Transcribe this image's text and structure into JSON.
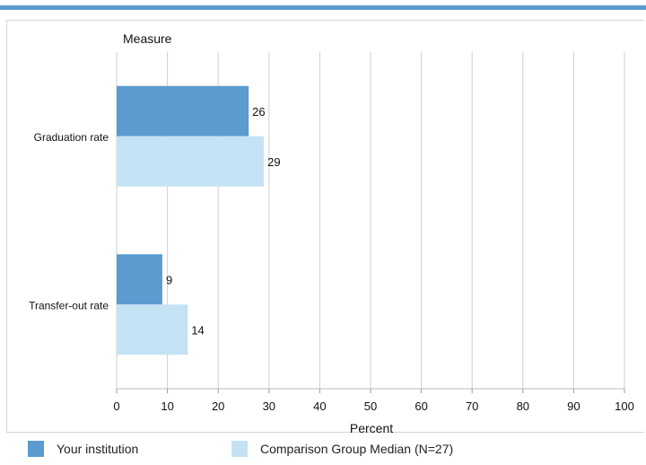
{
  "chart_data": {
    "type": "bar",
    "orientation": "horizontal",
    "ylabel": "Measure",
    "xlabel": "Percent",
    "categories": [
      "Graduation rate",
      "Transfer-out rate"
    ],
    "series": [
      {
        "name": "Your institution",
        "values": [
          26,
          9
        ],
        "color": "#5b9bd0"
      },
      {
        "name": "Comparison Group Median (N=27)",
        "values": [
          29,
          14
        ],
        "color": "#c5e2f5"
      }
    ],
    "xlim": [
      0,
      100
    ],
    "xticks": [
      0,
      10,
      20,
      30,
      40,
      50,
      60,
      70,
      80,
      90,
      100
    ],
    "grid": true,
    "legend_position": "bottom"
  },
  "legend": {
    "items": [
      {
        "label": "Your institution",
        "color": "#5b9bd0"
      },
      {
        "label": "Comparison Group Median (N=27)",
        "color": "#c5e2f5"
      }
    ]
  },
  "colors": {
    "accent_rule": "#5b9bd0",
    "grid": "#cfcfcf"
  }
}
